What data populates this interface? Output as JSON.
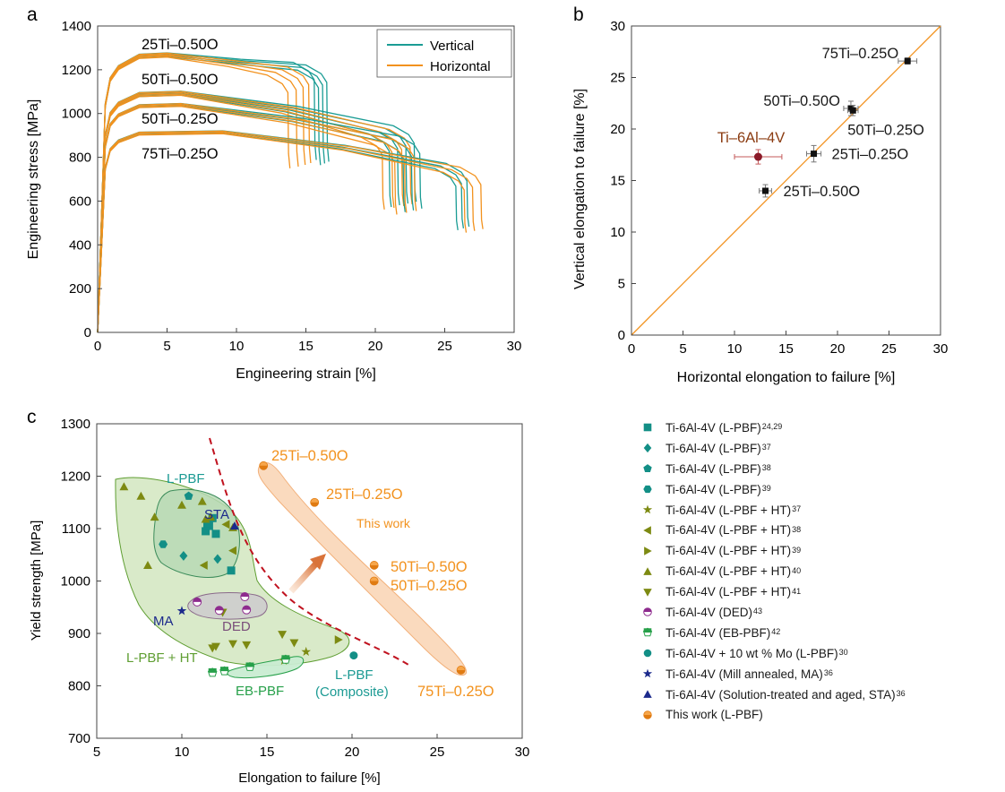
{
  "colors": {
    "vertical": "#1a9c94",
    "horizontal": "#f2921e",
    "thiswork": "#f2921e",
    "lpbf_region": "#d5e8c3",
    "lpbf_region_edge": "#5f9e32",
    "ded_region": "#cdcdcd",
    "eb_region": "#c9ecd2",
    "thiswork_region": "#f9d3b3",
    "boundary": "#c0121f",
    "ti64_point": "#8b1a28",
    "teal": "#138f86",
    "olive": "#7d8a12",
    "purple": "#8e2b8e",
    "green": "#27a04a",
    "navy": "#1c2a8c",
    "label_dark": "#1a1a1a",
    "ti64_label": "#8b3c12",
    "lpbf_label": "#1b9a93",
    "ded_label": "#7a4f7a",
    "eb_label": "#27a04a",
    "lpbfht_label": "#5f9e32",
    "composite_label": "#1b9a93",
    "sta_label": "#1c2a8c",
    "ma_label": "#1c2a8c",
    "orange_label": "#f2921e"
  },
  "panel_letters": {
    "a": "a",
    "b": "b",
    "c": "c"
  },
  "chart_data": [
    {
      "id": "a",
      "type": "line",
      "xlabel": "Engineering strain [%]",
      "ylabel": "Engineering stress [MPa]",
      "xlim": [
        0,
        30
      ],
      "ylim": [
        0,
        1400
      ],
      "xticks": [
        0,
        5,
        10,
        15,
        20,
        25,
        30
      ],
      "yticks": [
        0,
        200,
        400,
        600,
        800,
        1000,
        1200,
        1400
      ],
      "legend": {
        "placement": "top-right",
        "entries": [
          "Vertical",
          "Horizontal"
        ]
      },
      "series_labels": [
        "25Ti–0.50O",
        "50Ti–0.50O",
        "50Ti–0.25O",
        "75Ti–0.25O"
      ],
      "series": [
        {
          "name": "25Ti–0.50O",
          "orientation": "Vertical",
          "peak": 1265,
          "peak_strain": 5,
          "end_stress": 1170,
          "fracture_strains": [
            15.9,
            16.2,
            16.5,
            15.6
          ]
        },
        {
          "name": "25Ti–0.50O",
          "orientation": "Horizontal",
          "peak": 1270,
          "peak_strain": 5,
          "end_stress": 1160,
          "fracture_strains": [
            13.7,
            14.3,
            14.8,
            15.2
          ]
        },
        {
          "name": "50Ti–0.50O",
          "orientation": "Vertical",
          "peak": 1090,
          "peak_strain": 6,
          "end_stress": 880,
          "fracture_strains": [
            21.0,
            21.6,
            22.2,
            22.8
          ]
        },
        {
          "name": "50Ti–0.50O",
          "orientation": "Horizontal",
          "peak": 1095,
          "peak_strain": 6,
          "end_stress": 875,
          "fracture_strains": [
            20.5,
            21.2,
            21.9,
            22.5
          ]
        },
        {
          "name": "50Ti–0.25O",
          "orientation": "Vertical",
          "peak": 1040,
          "peak_strain": 6,
          "end_stress": 845,
          "fracture_strains": [
            22.0,
            22.6,
            23.2
          ]
        },
        {
          "name": "50Ti–0.25O",
          "orientation": "Horizontal",
          "peak": 1045,
          "peak_strain": 6,
          "end_stress": 840,
          "fracture_strains": [
            21.4,
            22.1,
            22.8
          ]
        },
        {
          "name": "75Ti–0.25O",
          "orientation": "Vertical",
          "peak": 915,
          "peak_strain": 9,
          "end_stress": 720,
          "fracture_strains": [
            25.8,
            26.2,
            26.6
          ]
        },
        {
          "name": "75Ti–0.25O",
          "orientation": "Horizontal",
          "peak": 920,
          "peak_strain": 9,
          "end_stress": 715,
          "fracture_strains": [
            26.4,
            27.0,
            27.6
          ]
        }
      ]
    },
    {
      "id": "b",
      "type": "scatter",
      "xlabel": "Horizontal elongation to failure [%]",
      "ylabel": "Vertical elongation to failure [%]",
      "xlim": [
        0,
        30
      ],
      "ylim": [
        0,
        30
      ],
      "xticks": [
        0,
        5,
        10,
        15,
        20,
        25,
        30
      ],
      "yticks": [
        0,
        5,
        10,
        15,
        20,
        25,
        30
      ],
      "reference_line": [
        [
          0,
          0
        ],
        [
          30,
          30
        ]
      ],
      "points": [
        {
          "label": "75Ti–0.25O",
          "x": 26.8,
          "y": 26.6,
          "xerr": 0.9,
          "yerr": 0.3
        },
        {
          "label": "50Ti–0.50O",
          "x": 21.3,
          "y": 22.0,
          "xerr": 0.7,
          "yerr": 0.7
        },
        {
          "label": "50Ti–0.25O",
          "x": 21.5,
          "y": 21.8,
          "xerr": 0.5,
          "yerr": 0.5
        },
        {
          "label": "25Ti–0.25O",
          "x": 17.7,
          "y": 17.6,
          "xerr": 0.7,
          "yerr": 0.8
        },
        {
          "label": "25Ti–0.50O",
          "x": 13.0,
          "y": 14.0,
          "xerr": 0.6,
          "yerr": 0.6
        },
        {
          "label": "Ti–6Al–4V",
          "x": 12.3,
          "y": 17.3,
          "xerr": 2.3,
          "yerr": 0.7
        }
      ]
    },
    {
      "id": "c",
      "type": "scatter",
      "xlabel": "Elongation to failure [%]",
      "ylabel": "Yield strength [MPa]",
      "xlim": [
        5,
        30
      ],
      "ylim": [
        700,
        1300
      ],
      "xticks": [
        5,
        10,
        15,
        20,
        25,
        30
      ],
      "yticks": [
        700,
        800,
        900,
        1000,
        1100,
        1200,
        1300
      ],
      "region_labels": {
        "lpbf": "L-PBF",
        "sta": "STA",
        "ma": "MA",
        "ded": "DED",
        "lpbf_ht": "L-PBF + HT",
        "eb": "EB-PBF",
        "composite_1": "L-PBF",
        "composite_2": "(Composite)",
        "this_work": "This work"
      },
      "series": [
        {
          "legend": "Ti-6Al-4V (L-PBF)",
          "ref": "24,29",
          "marker": "square",
          "color": "teal",
          "x": [
            11.4,
            11.6,
            12.0,
            11.8,
            12.9,
            11.5
          ],
          "y": [
            1095,
            1105,
            1090,
            1120,
            1020,
            1110
          ]
        },
        {
          "legend": "Ti-6Al-4V (L-PBF)",
          "ref": "37",
          "marker": "diamond",
          "color": "teal",
          "x": [
            10.1,
            12.1
          ],
          "y": [
            1048,
            1042
          ]
        },
        {
          "legend": "Ti-6Al-4V (L-PBF)",
          "ref": "38",
          "marker": "pentagon",
          "color": "teal",
          "x": [
            10.4
          ],
          "y": [
            1162
          ]
        },
        {
          "legend": "Ti-6Al-4V (L-PBF)",
          "ref": "39",
          "marker": "hexagon",
          "color": "teal",
          "x": [
            8.9
          ],
          "y": [
            1070
          ]
        },
        {
          "legend": "Ti-6Al-4V (L-PBF + HT)",
          "ref": "37",
          "marker": "star",
          "color": "olive",
          "x": [
            16.0,
            17.3
          ],
          "y": [
            848,
            865
          ]
        },
        {
          "legend": "Ti-6Al-4V (L-PBF + HT)",
          "ref": "38",
          "marker": "tri-left",
          "color": "olive",
          "x": [
            11.3,
            12.6,
            13.0
          ],
          "y": [
            1030,
            1108,
            1058
          ]
        },
        {
          "legend": "Ti-6Al-4V (L-PBF + HT)",
          "ref": "39",
          "marker": "tri-right",
          "color": "olive",
          "x": [
            19.2
          ],
          "y": [
            888
          ]
        },
        {
          "legend": "Ti-6Al-4V (L-PBF + HT)",
          "ref": "40",
          "marker": "tri-up",
          "color": "olive",
          "x": [
            6.6,
            7.6,
            8.0,
            8.4,
            10.0,
            11.2,
            11.4,
            11.7,
            13.0
          ],
          "y": [
            1180,
            1162,
            1030,
            1122,
            1145,
            1152,
            1118,
            1122,
            1102
          ]
        },
        {
          "legend": "Ti-6Al-4V (L-PBF + HT)",
          "ref": "41",
          "marker": "tri-down",
          "color": "olive",
          "x": [
            11.8,
            12.0,
            12.4,
            13.0,
            13.8,
            15.9,
            16.6
          ],
          "y": [
            872,
            875,
            940,
            880,
            878,
            898,
            882
          ]
        },
        {
          "legend": "Ti-6Al-4V (DED)",
          "ref": "43",
          "marker": "half-circle",
          "color": "purple",
          "x": [
            10.9,
            12.2,
            13.7,
            13.8
          ],
          "y": [
            960,
            944,
            970,
            945
          ]
        },
        {
          "legend": "Ti-6Al-4V (EB-PBF)",
          "ref": "42",
          "marker": "half-pentagon",
          "color": "green",
          "x": [
            11.8,
            12.5,
            14.0,
            16.1
          ],
          "y": [
            825,
            828,
            836,
            850
          ]
        },
        {
          "legend": "Ti-6Al-4V + 10 wt % Mo (L-PBF)",
          "ref": "30",
          "marker": "circle",
          "color": "teal",
          "x": [
            20.1
          ],
          "y": [
            858
          ]
        },
        {
          "legend": "Ti-6Al-4V (Mill annealed, MA)",
          "ref": "36",
          "marker": "star",
          "color": "navy",
          "x": [
            10.0
          ],
          "y": [
            943
          ]
        },
        {
          "legend": "Ti-6Al-4V (Solution-treated and aged, STA)",
          "ref": "36",
          "marker": "triangle",
          "color": "navy",
          "x": [
            13.1
          ],
          "y": [
            1105
          ]
        },
        {
          "legend": "This work (L-PBF)",
          "ref": "",
          "marker": "orange-circle",
          "color": "thiswork",
          "labels": [
            "25Ti–0.50O",
            "25Ti–0.25O",
            "50Ti–0.50O",
            "50Ti–0.25O",
            "75Ti–0.25O"
          ],
          "x": [
            14.8,
            17.8,
            21.3,
            21.3,
            26.4
          ],
          "y": [
            1220,
            1150,
            1030,
            1000,
            830
          ]
        }
      ]
    }
  ]
}
